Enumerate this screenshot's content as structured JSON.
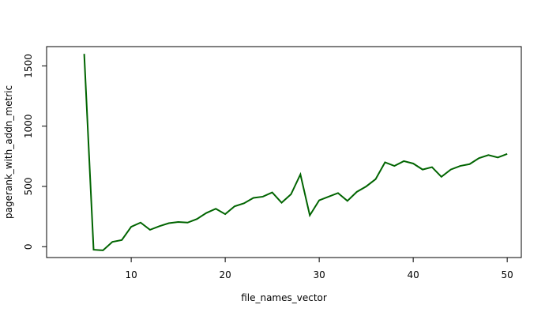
{
  "chart_data": {
    "type": "line",
    "title": "",
    "xlabel": "file_names_vector",
    "ylabel": "pagerank_with_addn_metric",
    "xlim": [
      1,
      51.5
    ],
    "ylim": [
      -90,
      1660
    ],
    "x_ticks": [
      10,
      20,
      30,
      40,
      50
    ],
    "y_ticks": [
      0,
      500,
      1000,
      1500
    ],
    "grid": false,
    "line_color": "#006400",
    "series": [
      {
        "x": [
          5,
          6,
          7,
          8,
          9,
          10,
          11,
          12,
          13,
          14,
          15,
          16,
          17,
          18,
          19,
          20,
          21,
          22,
          23,
          24,
          25,
          26,
          27,
          28,
          29,
          30,
          31,
          32,
          33,
          34,
          35,
          36,
          37,
          38,
          39,
          40,
          41,
          42,
          43,
          44,
          45,
          46,
          47,
          48,
          49,
          50
        ],
        "values": [
          1600,
          -25,
          -30,
          40,
          55,
          165,
          200,
          140,
          170,
          195,
          205,
          200,
          230,
          280,
          315,
          270,
          335,
          360,
          405,
          415,
          450,
          365,
          435,
          600,
          260,
          385,
          415,
          445,
          380,
          455,
          500,
          560,
          700,
          670,
          710,
          690,
          640,
          660,
          580,
          640,
          670,
          685,
          735,
          760,
          740,
          770
        ]
      }
    ]
  }
}
